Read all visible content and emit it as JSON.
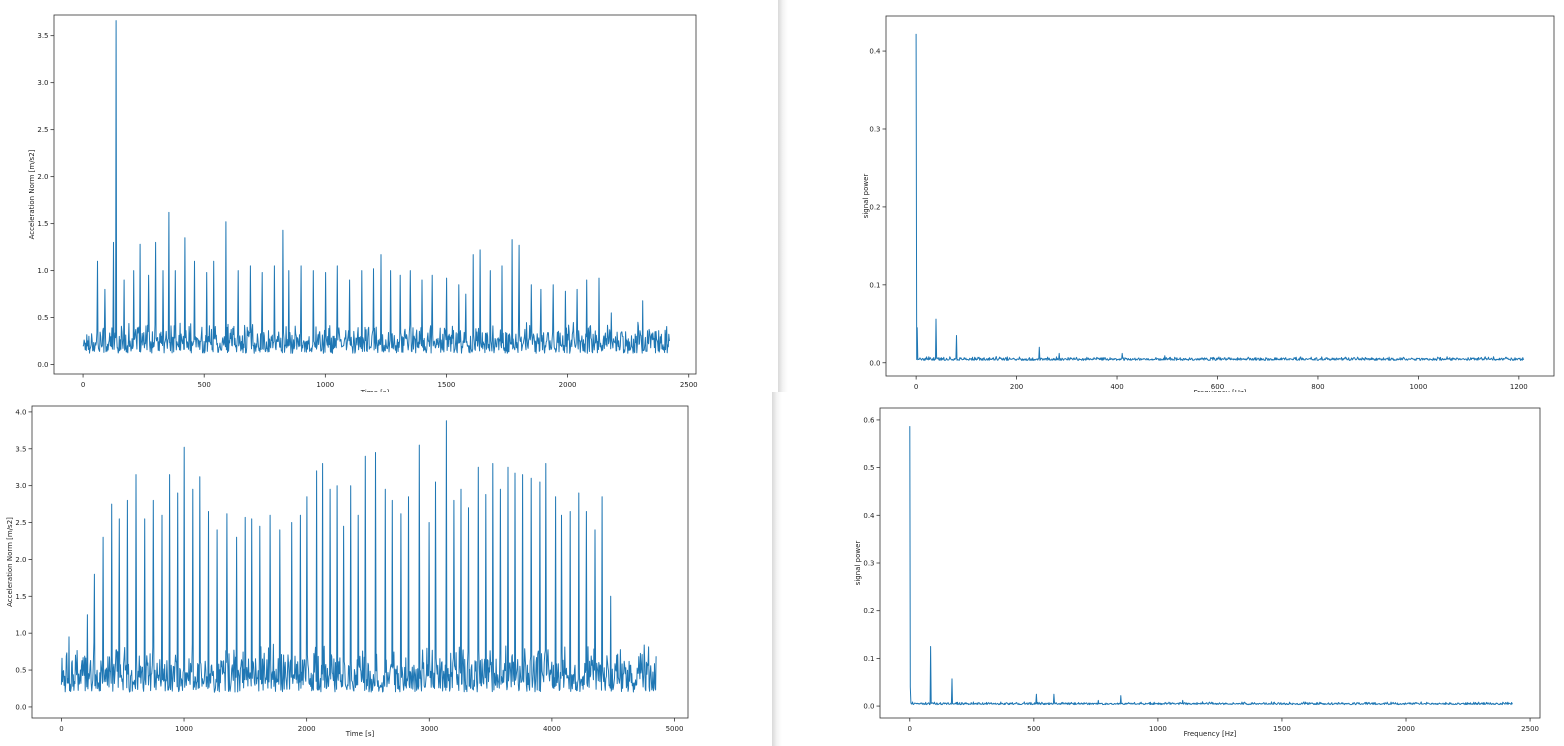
{
  "line_color": "#1f77b4",
  "chart_data": [
    {
      "type": "line",
      "title": "",
      "xlabel": "Time [s]",
      "ylabel": "Acceleration Norm [m/s2]",
      "xlim": [
        -120,
        2530
      ],
      "ylim": [
        -0.1,
        3.72
      ],
      "xticks": [
        0,
        500,
        1000,
        1500,
        2000,
        2500
      ],
      "xtick_labels": [
        "0",
        "500",
        "1000",
        "1500",
        "2000",
        "2500"
      ],
      "yticks": [
        0.0,
        0.5,
        1.0,
        1.5,
        2.0,
        2.5,
        3.0,
        3.5
      ],
      "ytick_labels": [
        "0.0",
        "0.5",
        "1.0",
        "1.5",
        "2.0",
        "2.5",
        "3.0",
        "3.5"
      ],
      "series": [
        {
          "x_range": [
            0,
            2420
          ],
          "baseline": 0.12,
          "noise": 0.35,
          "peaks": [
            [
              60,
              1.1
            ],
            [
              90,
              0.8
            ],
            [
              125,
              1.3
            ],
            [
              137,
              3.66
            ],
            [
              170,
              0.9
            ],
            [
              210,
              1.0
            ],
            [
              235,
              1.28
            ],
            [
              270,
              0.95
            ],
            [
              300,
              1.3
            ],
            [
              330,
              1.0
            ],
            [
              355,
              1.62
            ],
            [
              380,
              1.0
            ],
            [
              420,
              1.35
            ],
            [
              460,
              1.1
            ],
            [
              510,
              0.98
            ],
            [
              540,
              1.1
            ],
            [
              590,
              1.52
            ],
            [
              640,
              1.0
            ],
            [
              690,
              1.05
            ],
            [
              740,
              0.98
            ],
            [
              790,
              1.05
            ],
            [
              825,
              1.43
            ],
            [
              850,
              1.0
            ],
            [
              900,
              1.05
            ],
            [
              950,
              1.0
            ],
            [
              1000,
              0.98
            ],
            [
              1050,
              1.05
            ],
            [
              1100,
              0.9
            ],
            [
              1150,
              1.0
            ],
            [
              1200,
              1.02
            ],
            [
              1230,
              1.17
            ],
            [
              1270,
              1.0
            ],
            [
              1310,
              0.95
            ],
            [
              1350,
              1.0
            ],
            [
              1400,
              0.9
            ],
            [
              1440,
              0.95
            ],
            [
              1500,
              0.92
            ],
            [
              1550,
              0.85
            ],
            [
              1580,
              0.75
            ],
            [
              1610,
              1.17
            ],
            [
              1640,
              1.22
            ],
            [
              1680,
              1.0
            ],
            [
              1730,
              1.05
            ],
            [
              1770,
              1.33
            ],
            [
              1800,
              1.27
            ],
            [
              1850,
              0.85
            ],
            [
              1890,
              0.8
            ],
            [
              1940,
              0.85
            ],
            [
              1990,
              0.78
            ],
            [
              2040,
              0.8
            ],
            [
              2080,
              0.9
            ],
            [
              2130,
              0.92
            ],
            [
              2180,
              0.55
            ],
            [
              2240,
              0.35
            ],
            [
              2290,
              0.45
            ],
            [
              2310,
              0.68
            ],
            [
              2360,
              0.35
            ],
            [
              2410,
              0.25
            ]
          ]
        }
      ]
    },
    {
      "type": "line",
      "title": "",
      "xlabel": "Frequency [Hz]",
      "ylabel": "signal power",
      "xlim": [
        -60,
        1270
      ],
      "ylim": [
        -0.017,
        0.445
      ],
      "xticks": [
        0,
        200,
        400,
        600,
        800,
        1000,
        1200
      ],
      "xtick_labels": [
        "0",
        "200",
        "400",
        "600",
        "800",
        "1000",
        "1200"
      ],
      "yticks": [
        0.0,
        0.1,
        0.2,
        0.3,
        0.4
      ],
      "ytick_labels": [
        "0.0",
        "0.1",
        "0.2",
        "0.3",
        "0.4"
      ],
      "series": [
        {
          "x_range": [
            0,
            1210
          ],
          "baseline": 0.003,
          "noise": 0.005,
          "peaks": [
            [
              0,
              0.422
            ],
            [
              2,
              0.045
            ],
            [
              40,
              0.056
            ],
            [
              80,
              0.035
            ],
            [
              160,
              0.008
            ],
            [
              245,
              0.02
            ],
            [
              285,
              0.012
            ],
            [
              410,
              0.012
            ],
            [
              495,
              0.009
            ]
          ]
        }
      ]
    },
    {
      "type": "line",
      "title": "",
      "xlabel": "Time [s]",
      "ylabel": "Acceleration Norm [m/s2]",
      "xlim": [
        -240,
        5110
      ],
      "ylim": [
        -0.15,
        4.08
      ],
      "xticks": [
        0,
        1000,
        2000,
        3000,
        4000,
        5000
      ],
      "xtick_labels": [
        "0",
        "1000",
        "2000",
        "3000",
        "4000",
        "5000"
      ],
      "yticks": [
        0.0,
        0.5,
        1.0,
        1.5,
        2.0,
        2.5,
        3.0,
        3.5,
        4.0
      ],
      "ytick_labels": [
        "0.0",
        "0.5",
        "1.0",
        "1.5",
        "2.0",
        "2.5",
        "3.0",
        "3.5",
        "4.0"
      ],
      "series": [
        {
          "x_range": [
            0,
            4850
          ],
          "baseline": 0.2,
          "noise": 0.7,
          "peaks": [
            [
              60,
              0.95
            ],
            [
              210,
              1.25
            ],
            [
              270,
              1.8
            ],
            [
              340,
              2.3
            ],
            [
              410,
              2.75
            ],
            [
              470,
              2.55
            ],
            [
              540,
              2.8
            ],
            [
              610,
              3.15
            ],
            [
              680,
              2.55
            ],
            [
              750,
              2.8
            ],
            [
              820,
              2.6
            ],
            [
              880,
              3.15
            ],
            [
              950,
              2.9
            ],
            [
              1000,
              3.52
            ],
            [
              1070,
              2.95
            ],
            [
              1130,
              3.12
            ],
            [
              1200,
              2.65
            ],
            [
              1270,
              2.4
            ],
            [
              1350,
              2.62
            ],
            [
              1430,
              2.3
            ],
            [
              1500,
              2.57
            ],
            [
              1550,
              2.55
            ],
            [
              1620,
              2.45
            ],
            [
              1700,
              2.6
            ],
            [
              1780,
              2.4
            ],
            [
              1880,
              2.5
            ],
            [
              1950,
              2.6
            ],
            [
              2000,
              2.85
            ],
            [
              2080,
              3.2
            ],
            [
              2130,
              3.3
            ],
            [
              2190,
              2.95
            ],
            [
              2250,
              3.0
            ],
            [
              2300,
              2.45
            ],
            [
              2360,
              3.0
            ],
            [
              2420,
              2.6
            ],
            [
              2480,
              3.4
            ],
            [
              2560,
              3.45
            ],
            [
              2640,
              2.95
            ],
            [
              2700,
              2.8
            ],
            [
              2770,
              2.62
            ],
            [
              2830,
              2.85
            ],
            [
              2920,
              3.55
            ],
            [
              3000,
              2.5
            ],
            [
              3050,
              3.05
            ],
            [
              3140,
              3.88
            ],
            [
              3200,
              2.8
            ],
            [
              3260,
              2.95
            ],
            [
              3320,
              2.7
            ],
            [
              3400,
              3.25
            ],
            [
              3460,
              2.88
            ],
            [
              3520,
              3.3
            ],
            [
              3580,
              2.95
            ],
            [
              3640,
              3.25
            ],
            [
              3700,
              3.17
            ],
            [
              3760,
              3.15
            ],
            [
              3830,
              3.1
            ],
            [
              3900,
              3.05
            ],
            [
              3950,
              3.3
            ],
            [
              4030,
              2.85
            ],
            [
              4080,
              2.6
            ],
            [
              4150,
              2.65
            ],
            [
              4220,
              2.9
            ],
            [
              4280,
              2.65
            ],
            [
              4350,
              2.4
            ],
            [
              4410,
              2.85
            ],
            [
              4480,
              1.5
            ],
            [
              4530,
              0.7
            ],
            [
              4800,
              0.3
            ]
          ]
        }
      ]
    },
    {
      "type": "line",
      "title": "",
      "xlabel": "Frequency [Hz]",
      "ylabel": "signal power",
      "xlim": [
        -120,
        2540
      ],
      "ylim": [
        -0.025,
        0.625
      ],
      "xticks": [
        0,
        500,
        1000,
        1500,
        2000,
        2500
      ],
      "xtick_labels": [
        "0",
        "500",
        "1000",
        "1500",
        "2000",
        "2500"
      ],
      "yticks": [
        0.0,
        0.1,
        0.2,
        0.3,
        0.4,
        0.5,
        0.6
      ],
      "ytick_labels": [
        "0.0",
        "0.1",
        "0.2",
        "0.3",
        "0.4",
        "0.5",
        "0.6"
      ],
      "series": [
        {
          "x_range": [
            0,
            2430
          ],
          "baseline": 0.003,
          "noise": 0.006,
          "peaks": [
            [
              0,
              0.587
            ],
            [
              3,
              0.04
            ],
            [
              83,
              0.125
            ],
            [
              170,
              0.057
            ],
            [
              510,
              0.025
            ],
            [
              580,
              0.025
            ],
            [
              760,
              0.012
            ],
            [
              850,
              0.022
            ],
            [
              1100,
              0.012
            ],
            [
              1180,
              0.009
            ]
          ]
        }
      ]
    }
  ]
}
